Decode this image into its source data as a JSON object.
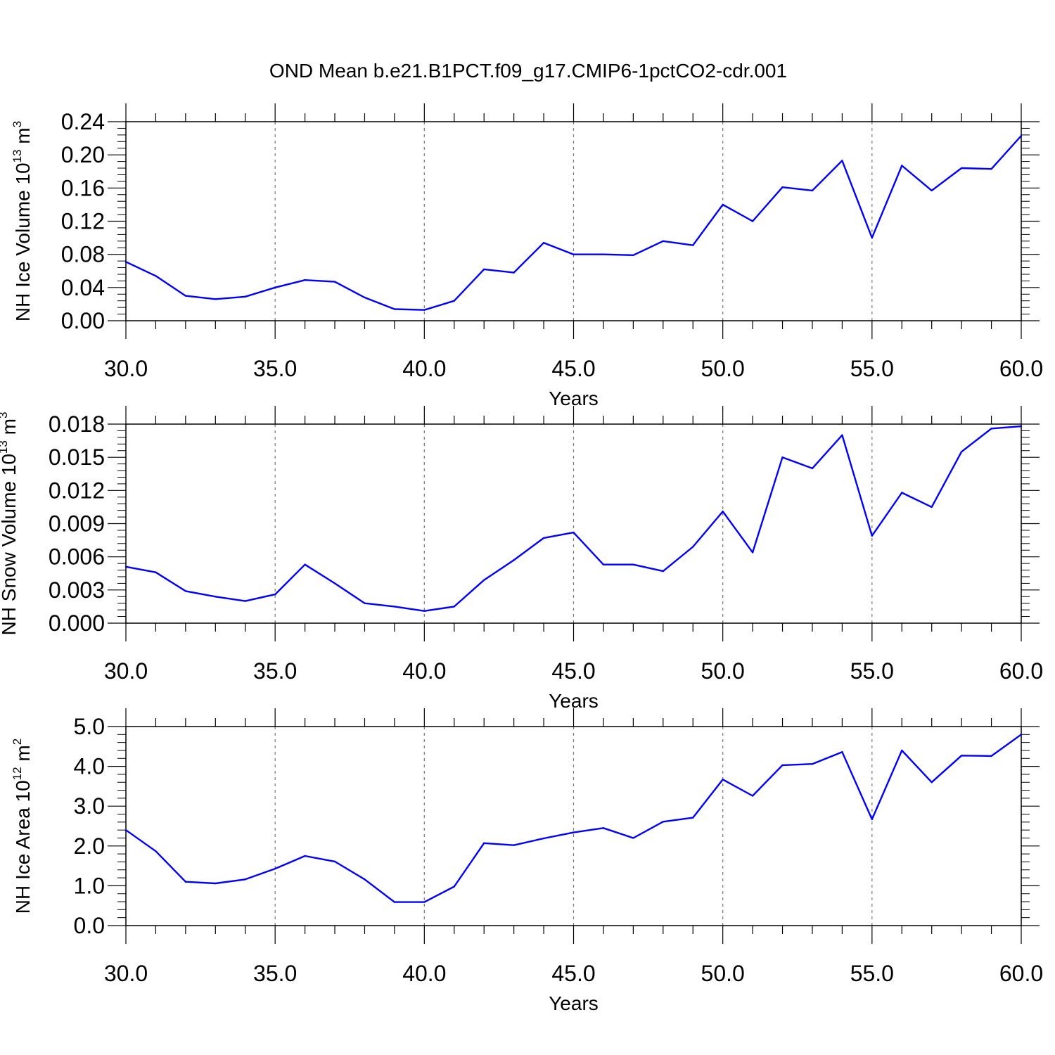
{
  "figure_title": "OND Mean b.e21.B1PCT.f09_g17.CMIP6-1pctCO2-cdr.001",
  "chart_data": [
    {
      "type": "line",
      "xlabel": "Years",
      "ylabel_parts": [
        "NH Ice Volume 10",
        "13",
        " m",
        "3"
      ],
      "xlim": [
        30,
        60
      ],
      "ylim": [
        0,
        0.24
      ],
      "x_ticks": [
        "30.0",
        "35.0",
        "40.0",
        "45.0",
        "50.0",
        "55.0",
        "60.0"
      ],
      "y_ticks": [
        "0.00",
        "0.04",
        "0.08",
        "0.12",
        "0.16",
        "0.20",
        "0.24"
      ],
      "color": "#0000ff",
      "x": [
        30,
        31,
        32,
        33,
        34,
        35,
        36,
        37,
        38,
        39,
        40,
        41,
        42,
        43,
        44,
        45,
        46,
        47,
        48,
        49,
        50,
        51,
        52,
        53,
        54,
        55,
        56,
        57,
        58,
        59,
        60
      ],
      "values": [
        0.071,
        0.054,
        0.03,
        0.026,
        0.029,
        0.04,
        0.049,
        0.047,
        0.028,
        0.014,
        0.013,
        0.024,
        0.062,
        0.058,
        0.094,
        0.08,
        0.08,
        0.079,
        0.096,
        0.091,
        0.14,
        0.12,
        0.161,
        0.157,
        0.193,
        0.1,
        0.187,
        0.157,
        0.184,
        0.183,
        0.223
      ]
    },
    {
      "type": "line",
      "xlabel": "Years",
      "ylabel_parts": [
        "NH Snow Volume 10",
        "13",
        " m",
        "3"
      ],
      "xlim": [
        30,
        60
      ],
      "ylim": [
        0,
        0.018
      ],
      "x_ticks": [
        "30.0",
        "35.0",
        "40.0",
        "45.0",
        "50.0",
        "55.0",
        "60.0"
      ],
      "y_ticks": [
        "0.000",
        "0.003",
        "0.006",
        "0.009",
        "0.012",
        "0.015",
        "0.018"
      ],
      "color": "#0000ff",
      "x": [
        30,
        31,
        32,
        33,
        34,
        35,
        36,
        37,
        38,
        39,
        40,
        41,
        42,
        43,
        44,
        45,
        46,
        47,
        48,
        49,
        50,
        51,
        52,
        53,
        54,
        55,
        56,
        57,
        58,
        59,
        60
      ],
      "values": [
        0.0051,
        0.0046,
        0.0029,
        0.0024,
        0.002,
        0.0026,
        0.0053,
        0.0036,
        0.0018,
        0.0015,
        0.0011,
        0.0015,
        0.0039,
        0.0057,
        0.0077,
        0.0082,
        0.0053,
        0.0053,
        0.0047,
        0.0069,
        0.0101,
        0.0064,
        0.015,
        0.014,
        0.017,
        0.0079,
        0.0118,
        0.0105,
        0.0155,
        0.0176,
        0.0178
      ]
    },
    {
      "type": "line",
      "xlabel": "Years",
      "ylabel_parts": [
        "NH Ice Area 10",
        "12",
        " m",
        "2"
      ],
      "xlim": [
        30,
        60
      ],
      "ylim": [
        0,
        5
      ],
      "x_ticks": [
        "30.0",
        "35.0",
        "40.0",
        "45.0",
        "50.0",
        "55.0",
        "60.0"
      ],
      "y_ticks": [
        "0.0",
        "1.0",
        "2.0",
        "3.0",
        "4.0",
        "5.0"
      ],
      "color": "#0000ff",
      "x": [
        30,
        31,
        32,
        33,
        34,
        35,
        36,
        37,
        38,
        39,
        40,
        41,
        42,
        43,
        44,
        45,
        46,
        47,
        48,
        49,
        50,
        51,
        52,
        53,
        54,
        55,
        56,
        57,
        58,
        59,
        60
      ],
      "values": [
        2.4,
        1.87,
        1.1,
        1.06,
        1.16,
        1.43,
        1.75,
        1.61,
        1.16,
        0.59,
        0.59,
        0.98,
        2.07,
        2.02,
        2.19,
        2.34,
        2.45,
        2.2,
        2.61,
        2.71,
        3.67,
        3.26,
        4.03,
        4.06,
        4.36,
        2.67,
        4.4,
        3.6,
        4.27,
        4.26,
        4.8
      ]
    }
  ]
}
